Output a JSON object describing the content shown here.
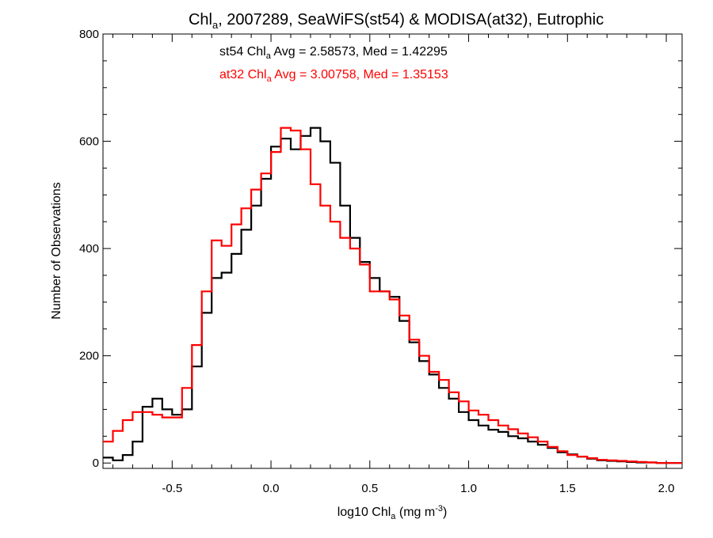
{
  "chart_data": {
    "type": "line",
    "title_main": "Chl",
    "title_sub": "a",
    "title_rest": ", 2007289, SeaWiFS(st54) & MODISA(at32), Eutrophic",
    "xlabel_main": "log10 Chl",
    "xlabel_sub": "a",
    "xlabel_units": " (mg m",
    "xlabel_sup": "-3",
    "xlabel_close": ")",
    "ylabel": "Number of Observations",
    "xlim": [
      -0.85,
      2.08
    ],
    "ylim": [
      -10,
      800
    ],
    "xticks": [
      -0.5,
      0.0,
      0.5,
      1.0,
      1.5,
      2.0
    ],
    "xtick_labels": [
      "-0.5",
      "0.0",
      "0.5",
      "1.0",
      "1.5",
      "2.0"
    ],
    "yticks": [
      0,
      200,
      400,
      600,
      800
    ],
    "ytick_labels": [
      "0",
      "200",
      "400",
      "600",
      "800"
    ],
    "grid": false,
    "series": [
      {
        "name": "st54",
        "color": "#000000",
        "stat_prefix": "st54 Chl",
        "stat_sub": "a",
        "stat_rest": " Avg = 2.58573, Med = 1.42295",
        "x": [
          -0.85,
          -0.8,
          -0.75,
          -0.7,
          -0.65,
          -0.6,
          -0.55,
          -0.5,
          -0.45,
          -0.4,
          -0.35,
          -0.3,
          -0.25,
          -0.2,
          -0.15,
          -0.1,
          -0.05,
          0.0,
          0.05,
          0.1,
          0.15,
          0.2,
          0.25,
          0.3,
          0.35,
          0.4,
          0.45,
          0.5,
          0.55,
          0.6,
          0.65,
          0.7,
          0.75,
          0.8,
          0.85,
          0.9,
          0.95,
          1.0,
          1.05,
          1.1,
          1.15,
          1.2,
          1.25,
          1.3,
          1.35,
          1.4,
          1.45,
          1.5,
          1.55,
          1.6,
          1.65,
          1.7,
          1.75,
          1.8,
          1.85,
          1.9,
          1.95,
          2.0,
          2.05
        ],
        "y": [
          10,
          5,
          15,
          40,
          105,
          120,
          100,
          90,
          100,
          180,
          280,
          345,
          355,
          390,
          435,
          480,
          530,
          590,
          605,
          585,
          610,
          625,
          600,
          560,
          480,
          420,
          375,
          345,
          320,
          310,
          265,
          225,
          190,
          165,
          140,
          120,
          95,
          80,
          70,
          62,
          58,
          50,
          46,
          40,
          34,
          28,
          20,
          16,
          12,
          8,
          5,
          4,
          3,
          2,
          1,
          1,
          0,
          0,
          0
        ]
      },
      {
        "name": "at32",
        "color": "#ff0000",
        "stat_prefix": "at32 Chl",
        "stat_sub": "a",
        "stat_rest": " Avg = 3.00758, Med = 1.35153",
        "x": [
          -0.85,
          -0.8,
          -0.75,
          -0.7,
          -0.65,
          -0.6,
          -0.55,
          -0.5,
          -0.45,
          -0.4,
          -0.35,
          -0.3,
          -0.25,
          -0.2,
          -0.15,
          -0.1,
          -0.05,
          0.0,
          0.05,
          0.1,
          0.15,
          0.2,
          0.25,
          0.3,
          0.35,
          0.4,
          0.45,
          0.5,
          0.55,
          0.6,
          0.65,
          0.7,
          0.75,
          0.8,
          0.85,
          0.9,
          0.95,
          1.0,
          1.05,
          1.1,
          1.15,
          1.2,
          1.25,
          1.3,
          1.35,
          1.4,
          1.45,
          1.5,
          1.55,
          1.6,
          1.65,
          1.7,
          1.75,
          1.8,
          1.85,
          1.9,
          1.95,
          2.0,
          2.05
        ],
        "y": [
          40,
          60,
          80,
          95,
          95,
          90,
          85,
          85,
          140,
          220,
          320,
          415,
          405,
          445,
          475,
          510,
          540,
          580,
          625,
          620,
          585,
          520,
          480,
          450,
          420,
          400,
          370,
          320,
          320,
          305,
          275,
          230,
          200,
          170,
          155,
          132,
          115,
          98,
          90,
          80,
          70,
          63,
          55,
          48,
          40,
          30,
          22,
          15,
          12,
          9,
          6,
          5,
          4,
          3,
          2,
          1,
          0,
          0,
          0
        ]
      }
    ]
  }
}
